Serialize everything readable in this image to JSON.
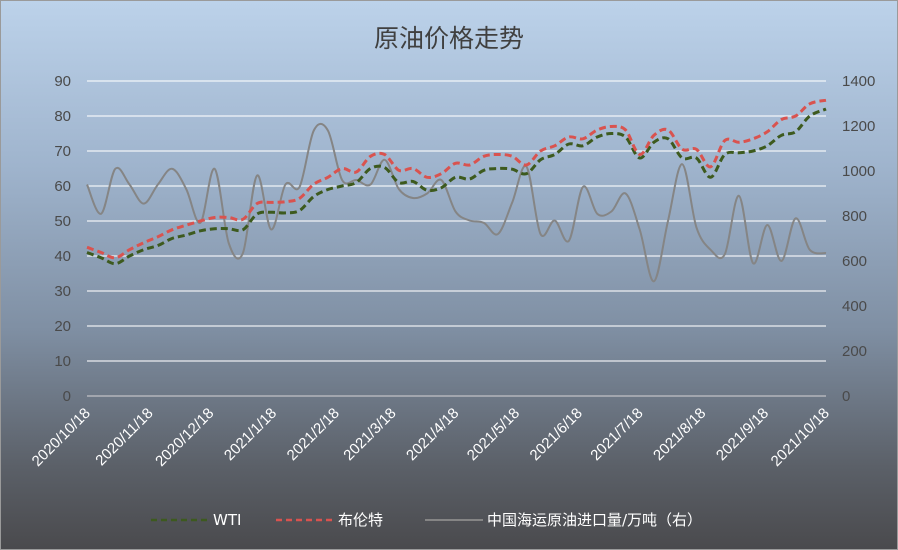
{
  "chart_data": {
    "type": "line",
    "title": "原油价格走势",
    "x_tick_labels": [
      "2020/10/18",
      "2020/11/18",
      "2020/12/18",
      "2021/1/18",
      "2021/2/18",
      "2021/3/18",
      "2021/4/18",
      "2021/5/18",
      "2021/6/18",
      "2021/7/18",
      "2021/8/18",
      "2021/9/18",
      "2021/10/18"
    ],
    "x_range": [
      "2020/10/18",
      "2021/10/18"
    ],
    "y_left": {
      "range": [
        0,
        90
      ],
      "ticks": [
        "0",
        "10",
        "20",
        "30",
        "40",
        "50",
        "60",
        "70",
        "80",
        "90"
      ]
    },
    "y_right": {
      "range": [
        0,
        1400
      ],
      "ticks": [
        "0",
        "200",
        "400",
        "600",
        "800",
        "1000",
        "1200",
        "1400"
      ]
    },
    "grid": true,
    "legend_position": "bottom",
    "series": [
      {
        "name": "WTI",
        "axis": "left",
        "color": "#3d5a1e",
        "style": "dashed",
        "points": [
          [
            "2020/10/18",
            41
          ],
          [
            "2020/10/25",
            39.5
          ],
          [
            "2020/11/1",
            37.8
          ],
          [
            "2020/11/8",
            40
          ],
          [
            "2020/11/15",
            41.8
          ],
          [
            "2020/11/22",
            43
          ],
          [
            "2020/11/29",
            45
          ],
          [
            "2020/12/6",
            46
          ],
          [
            "2020/12/13",
            47.2
          ],
          [
            "2020/12/20",
            47.8
          ],
          [
            "2020/12/27",
            47.8
          ],
          [
            "2021/1/3",
            47.5
          ],
          [
            "2021/1/10",
            52
          ],
          [
            "2021/1/17",
            52.5
          ],
          [
            "2021/1/24",
            52.3
          ],
          [
            "2021/1/31",
            53
          ],
          [
            "2021/2/7",
            57
          ],
          [
            "2021/2/14",
            59
          ],
          [
            "2021/2/21",
            60
          ],
          [
            "2021/2/28",
            61
          ],
          [
            "2021/3/7",
            65
          ],
          [
            "2021/3/14",
            65.3
          ],
          [
            "2021/3/21",
            61
          ],
          [
            "2021/3/28",
            61.3
          ],
          [
            "2021/4/4",
            58.8
          ],
          [
            "2021/4/11",
            59.5
          ],
          [
            "2021/4/18",
            62.5
          ],
          [
            "2021/4/25",
            62
          ],
          [
            "2021/5/2",
            64.5
          ],
          [
            "2021/5/9",
            65
          ],
          [
            "2021/5/16",
            64.8
          ],
          [
            "2021/5/23",
            63.5
          ],
          [
            "2021/5/30",
            67.5
          ],
          [
            "2021/6/6",
            69
          ],
          [
            "2021/6/13",
            72
          ],
          [
            "2021/6/20",
            71.5
          ],
          [
            "2021/6/27",
            74
          ],
          [
            "2021/7/4",
            75
          ],
          [
            "2021/7/11",
            74
          ],
          [
            "2021/7/18",
            68
          ],
          [
            "2021/7/25",
            72.5
          ],
          [
            "2021/8/1",
            73.5
          ],
          [
            "2021/8/8",
            68
          ],
          [
            "2021/8/15",
            68
          ],
          [
            "2021/8/22",
            62.5
          ],
          [
            "2021/8/29",
            69
          ],
          [
            "2021/9/5",
            69.5
          ],
          [
            "2021/9/12",
            70
          ],
          [
            "2021/9/19",
            71.5
          ],
          [
            "2021/9/26",
            74.5
          ],
          [
            "2021/10/3",
            75.5
          ],
          [
            "2021/10/10",
            80
          ],
          [
            "2021/10/18",
            82
          ]
        ]
      },
      {
        "name": "布伦特",
        "axis": "left",
        "color": "#d9534f",
        "style": "dashed",
        "points": [
          [
            "2020/10/18",
            42.5
          ],
          [
            "2020/10/25",
            41
          ],
          [
            "2020/11/1",
            39.5
          ],
          [
            "2020/11/8",
            41.8
          ],
          [
            "2020/11/15",
            43.8
          ],
          [
            "2020/11/22",
            45.5
          ],
          [
            "2020/11/29",
            47.5
          ],
          [
            "2020/12/6",
            48.8
          ],
          [
            "2020/12/13",
            50
          ],
          [
            "2020/12/20",
            51
          ],
          [
            "2020/12/27",
            51
          ],
          [
            "2021/1/3",
            50.5
          ],
          [
            "2021/1/10",
            55
          ],
          [
            "2021/1/17",
            55.3
          ],
          [
            "2021/1/24",
            55.5
          ],
          [
            "2021/1/31",
            56.5
          ],
          [
            "2021/2/7",
            60.5
          ],
          [
            "2021/2/14",
            62.5
          ],
          [
            "2021/2/21",
            65
          ],
          [
            "2021/2/28",
            64
          ],
          [
            "2021/3/7",
            68.5
          ],
          [
            "2021/3/14",
            69
          ],
          [
            "2021/3/21",
            64.5
          ],
          [
            "2021/3/28",
            65
          ],
          [
            "2021/4/4",
            62.5
          ],
          [
            "2021/4/11",
            63.5
          ],
          [
            "2021/4/18",
            66.5
          ],
          [
            "2021/4/25",
            66
          ],
          [
            "2021/5/2",
            68.5
          ],
          [
            "2021/5/9",
            69
          ],
          [
            "2021/5/16",
            68.5
          ],
          [
            "2021/5/23",
            66
          ],
          [
            "2021/5/30",
            70
          ],
          [
            "2021/6/6",
            71.5
          ],
          [
            "2021/6/13",
            74
          ],
          [
            "2021/6/20",
            73.5
          ],
          [
            "2021/6/27",
            76
          ],
          [
            "2021/7/4",
            77
          ],
          [
            "2021/7/11",
            76
          ],
          [
            "2021/7/18",
            69
          ],
          [
            "2021/7/25",
            74.5
          ],
          [
            "2021/8/1",
            76
          ],
          [
            "2021/8/8",
            70.5
          ],
          [
            "2021/8/15",
            70.5
          ],
          [
            "2021/8/22",
            65.5
          ],
          [
            "2021/8/29",
            73
          ],
          [
            "2021/9/5",
            72.5
          ],
          [
            "2021/9/12",
            73.5
          ],
          [
            "2021/9/19",
            75.5
          ],
          [
            "2021/9/26",
            79
          ],
          [
            "2021/10/3",
            80
          ],
          [
            "2021/10/10",
            83.5
          ],
          [
            "2021/10/18",
            84.5
          ]
        ]
      },
      {
        "name": "中国海运原油进口量/万吨（右）",
        "axis": "right",
        "color": "#858585",
        "style": "solid",
        "points": [
          [
            "2020/10/18",
            940
          ],
          [
            "2020/10/25",
            810
          ],
          [
            "2020/11/1",
            1010
          ],
          [
            "2020/11/8",
            940
          ],
          [
            "2020/11/15",
            855
          ],
          [
            "2020/11/22",
            940
          ],
          [
            "2020/11/29",
            1010
          ],
          [
            "2020/12/6",
            920
          ],
          [
            "2020/12/13",
            770
          ],
          [
            "2020/12/20",
            1010
          ],
          [
            "2020/12/27",
            680
          ],
          [
            "2021/1/3",
            635
          ],
          [
            "2021/1/10",
            980
          ],
          [
            "2021/1/17",
            740
          ],
          [
            "2021/1/24",
            940
          ],
          [
            "2021/1/31",
            930
          ],
          [
            "2021/2/7",
            1180
          ],
          [
            "2021/2/14",
            1180
          ],
          [
            "2021/2/21",
            960
          ],
          [
            "2021/2/28",
            960
          ],
          [
            "2021/3/7",
            940
          ],
          [
            "2021/3/14",
            1050
          ],
          [
            "2021/3/21",
            920
          ],
          [
            "2021/3/28",
            880
          ],
          [
            "2021/4/4",
            900
          ],
          [
            "2021/4/11",
            960
          ],
          [
            "2021/4/18",
            820
          ],
          [
            "2021/4/25",
            780
          ],
          [
            "2021/5/2",
            770
          ],
          [
            "2021/5/9",
            720
          ],
          [
            "2021/5/16",
            860
          ],
          [
            "2021/5/23",
            1020
          ],
          [
            "2021/5/30",
            720
          ],
          [
            "2021/6/6",
            780
          ],
          [
            "2021/6/13",
            690
          ],
          [
            "2021/6/20",
            930
          ],
          [
            "2021/6/27",
            810
          ],
          [
            "2021/7/4",
            820
          ],
          [
            "2021/7/11",
            900
          ],
          [
            "2021/7/18",
            740
          ],
          [
            "2021/7/25",
            510
          ],
          [
            "2021/8/1",
            780
          ],
          [
            "2021/8/8",
            1030
          ],
          [
            "2021/8/15",
            750
          ],
          [
            "2021/8/22",
            650
          ],
          [
            "2021/8/29",
            630
          ],
          [
            "2021/9/5",
            890
          ],
          [
            "2021/9/12",
            590
          ],
          [
            "2021/9/19",
            760
          ],
          [
            "2021/9/26",
            600
          ],
          [
            "2021/10/3",
            790
          ],
          [
            "2021/10/10",
            650
          ],
          [
            "2021/10/18",
            635
          ]
        ]
      }
    ]
  }
}
